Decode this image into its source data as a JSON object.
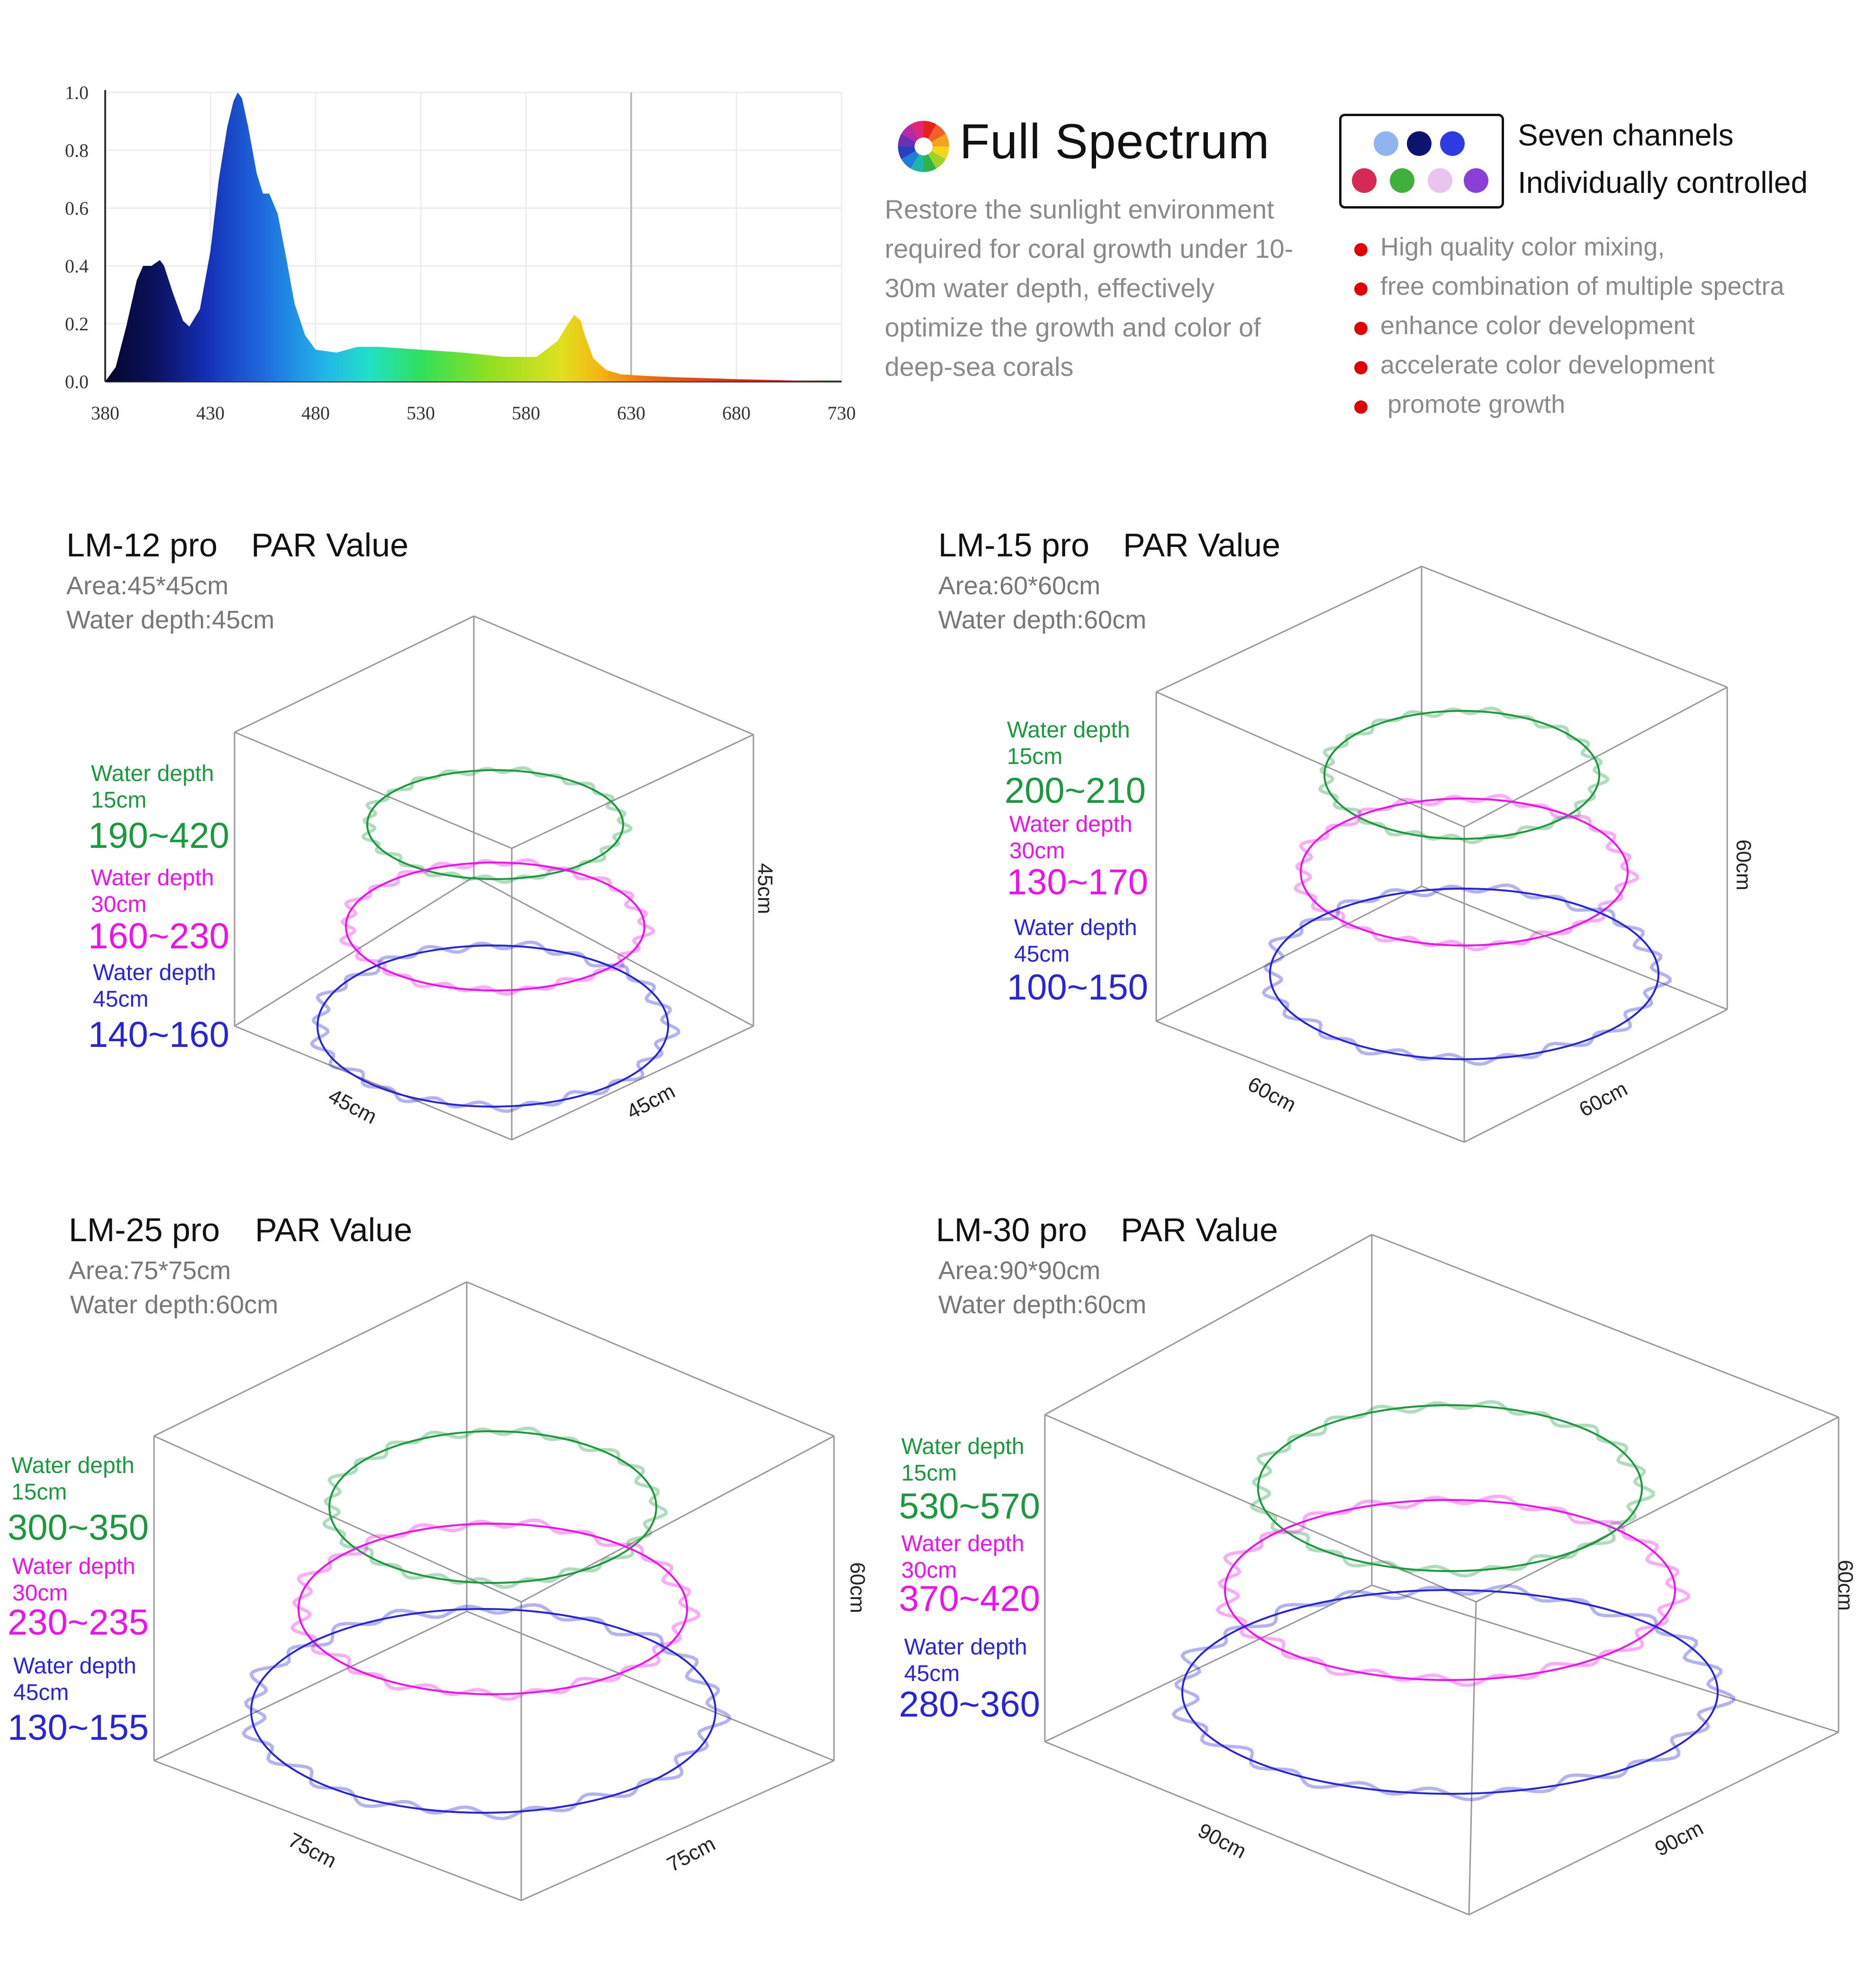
{
  "chart_data": [
    {
      "type": "area",
      "x": [
        380,
        385,
        390,
        395,
        398,
        402,
        406,
        408,
        412,
        417,
        420,
        425,
        430,
        434,
        438,
        441,
        443,
        445,
        448,
        452,
        455,
        458,
        462,
        466,
        470,
        475,
        480,
        490,
        500,
        510,
        530,
        550,
        570,
        585,
        595,
        600,
        603,
        606,
        608,
        612,
        618,
        625,
        635,
        650,
        680,
        710,
        730
      ],
      "y": [
        0.0,
        0.05,
        0.19,
        0.35,
        0.4,
        0.4,
        0.42,
        0.4,
        0.31,
        0.21,
        0.19,
        0.25,
        0.45,
        0.7,
        0.88,
        0.97,
        1.0,
        0.98,
        0.88,
        0.72,
        0.65,
        0.65,
        0.58,
        0.43,
        0.27,
        0.16,
        0.11,
        0.1,
        0.12,
        0.12,
        0.11,
        0.1,
        0.085,
        0.085,
        0.14,
        0.2,
        0.23,
        0.21,
        0.16,
        0.08,
        0.04,
        0.025,
        0.02,
        0.015,
        0.008,
        0.003,
        0.0
      ],
      "xticks": [
        380,
        430,
        480,
        530,
        580,
        630,
        680,
        730
      ],
      "yticks": [
        0.0,
        0.2,
        0.4,
        0.6,
        0.8,
        1.0
      ],
      "xlim": [
        380,
        730
      ],
      "ylim": [
        0,
        1.0
      ],
      "grid": true,
      "reference_line_x": 630
    }
  ],
  "full_spectrum": {
    "title": "Full Spectrum",
    "description": "Restore the sunlight environment required for coral growth under 10-30m water depth, effectively optimize the growth and color of deep-sea corals"
  },
  "channels": {
    "title_line1": "Seven channels",
    "title_line2": "Individually controlled",
    "dot_colors": [
      "#8fb4ef",
      "#0b1570",
      "#2d3be0",
      "#d42a53",
      "#3fb13a",
      "#e8c4ef",
      "#8a3fd6"
    ],
    "bullets": [
      "High quality color mixing,",
      "free combination of multiple spectra",
      "enhance color development",
      "accelerate color development",
      " promote growth"
    ]
  },
  "depth_label": "Water depth",
  "depth_15": "15cm",
  "depth_30": "30cm",
  "depth_45": "45cm",
  "colors": {
    "green": "#1a9a3c",
    "magenta": "#ee10ee",
    "blue": "#2626d6",
    "bullet": "#e00000"
  },
  "panels": [
    {
      "model": "LM-12 pro",
      "par_label": "PAR Value",
      "area": "Area:45*45cm",
      "depth": "Water depth:45cm",
      "values": {
        "d15": "190~420",
        "d30": "160~230",
        "d45": "140~160"
      },
      "dim_left": "45cm",
      "dim_right": "45cm",
      "dim_vertical": "45cm"
    },
    {
      "model": "LM-15 pro",
      "par_label": "PAR Value",
      "area": "Area:60*60cm",
      "depth": "Water depth:60cm",
      "values": {
        "d15": "200~210",
        "d30": "130~170",
        "d45": "100~150"
      },
      "dim_left": "60cm",
      "dim_right": "60cm",
      "dim_vertical": "60cm"
    },
    {
      "model": "LM-25 pro",
      "par_label": "PAR Value",
      "area": "Area:75*75cm",
      "depth": "Water depth:60cm",
      "values": {
        "d15": "300~350",
        "d30": "230~235",
        "d45": "130~155"
      },
      "dim_left": "75cm",
      "dim_right": "75cm",
      "dim_vertical": "60cm"
    },
    {
      "model": "LM-30 pro",
      "par_label": "PAR Value",
      "area": "Area:90*90cm",
      "depth": "Water depth:60cm",
      "values": {
        "d15": "530~570",
        "d30": "370~420",
        "d45": "280~360"
      },
      "dim_left": "90cm",
      "dim_right": "90cm",
      "dim_vertical": "60cm"
    }
  ]
}
